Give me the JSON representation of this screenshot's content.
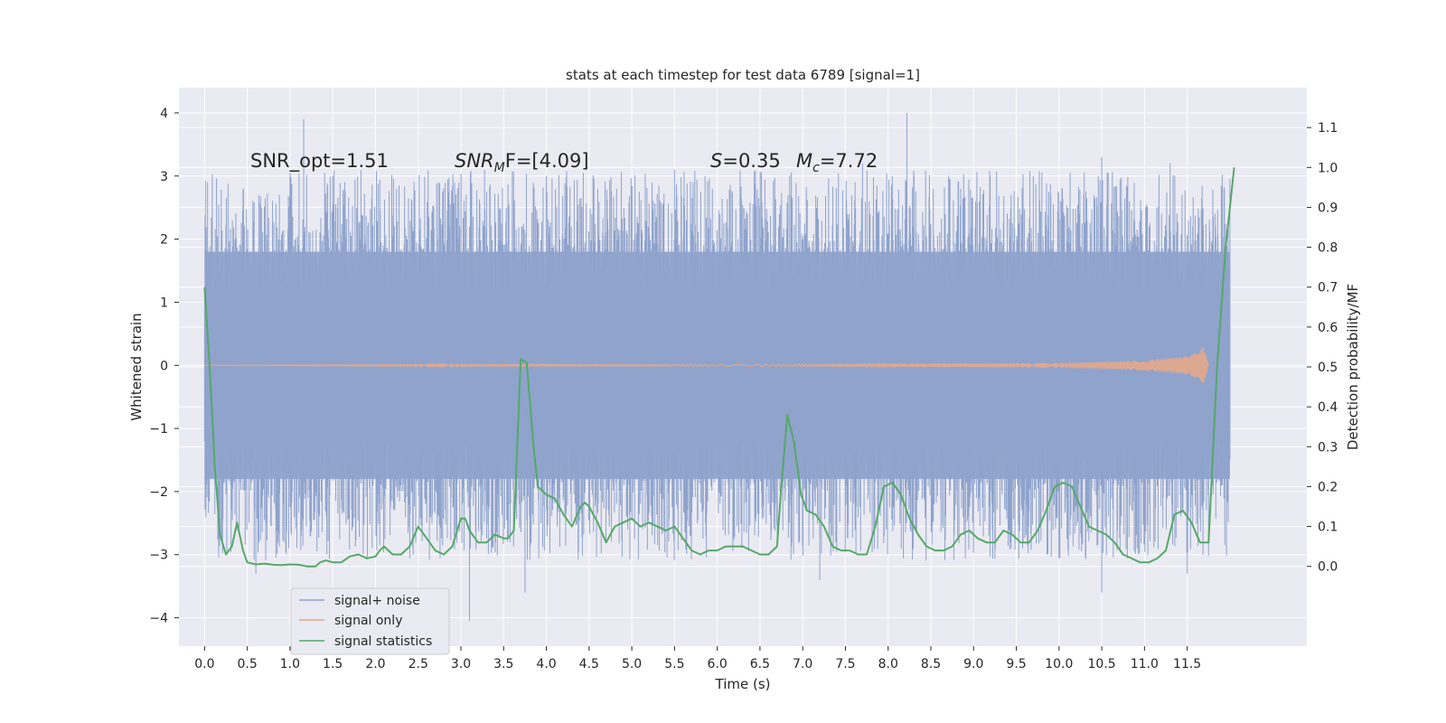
{
  "chart_data": {
    "type": "line",
    "title": "stats at each timestep for test data 6789 [signal=1]",
    "xlabel": "Time (s)",
    "ylabel": "Whitened strain",
    "y2label": "Detection probability/MF",
    "xlim": [
      -0.3,
      12.9
    ],
    "ylim": [
      -4.45,
      4.4
    ],
    "y2lim": [
      -0.2,
      1.2
    ],
    "x_ticks": [
      "0.0",
      "0.5",
      "1.0",
      "1.5",
      "2.0",
      "2.5",
      "3.0",
      "3.5",
      "4.0",
      "4.5",
      "5.0",
      "5.5",
      "6.0",
      "6.5",
      "7.0",
      "7.5",
      "8.0",
      "8.5",
      "9.0",
      "9.5",
      "10.0",
      "10.5",
      "11.0",
      "11.5"
    ],
    "y_ticks": [
      "4",
      "3",
      "2",
      "1",
      "0",
      "−1",
      "−2",
      "−3",
      "−4"
    ],
    "y2_ticks": [
      "1.1",
      "1.0",
      "0.9",
      "0.8",
      "0.7",
      "0.6",
      "0.5",
      "0.4",
      "0.3",
      "0.2",
      "0.1",
      "0.0"
    ],
    "grid": true,
    "legend_position": "lower-left",
    "annotations": {
      "snr_opt": "SNR_opt=1.51",
      "snr_mf_label": "SNR",
      "snr_mf_sub": "M",
      "snr_mf_rest": "F=[4.09]",
      "s_label": "S",
      "s_value": "=0.35",
      "mc_label": "M",
      "mc_sub": "c",
      "mc_value": "=7.72"
    },
    "series": [
      {
        "name": "signal+ noise",
        "color": "#8fa3cc",
        "style": "dense noise band",
        "t_range": [
          0.0,
          12.0
        ],
        "core_band": [
          -1.8,
          1.8
        ],
        "extremes": [
          [
            1.16,
            3.9
          ],
          [
            8.22,
            4.0
          ],
          [
            3.1,
            -4.05
          ],
          [
            0.6,
            -3.3
          ],
          [
            3.75,
            -3.6
          ],
          [
            7.2,
            -3.4
          ],
          [
            10.5,
            -3.6
          ],
          [
            11.5,
            -3.3
          ],
          [
            1.5,
            3.0
          ],
          [
            4.0,
            3.0
          ],
          [
            5.5,
            3.1
          ],
          [
            7.7,
            3.2
          ],
          [
            10.5,
            3.3
          ],
          [
            11.3,
            3.2
          ]
        ]
      },
      {
        "name": "signal only",
        "color": "#e6a88a",
        "style": "chirp",
        "t_range": [
          0.0,
          11.75
        ],
        "envelope": [
          [
            0.0,
            0.005
          ],
          [
            4.0,
            0.01
          ],
          [
            8.0,
            0.02
          ],
          [
            10.0,
            0.04
          ],
          [
            11.0,
            0.08
          ],
          [
            11.5,
            0.15
          ],
          [
            11.65,
            0.25
          ],
          [
            11.7,
            0.3
          ],
          [
            11.75,
            0.0
          ]
        ]
      },
      {
        "name": "signal statistics",
        "color": "#55a868",
        "style": "line",
        "points": [
          [
            0.0,
            0.7
          ],
          [
            0.06,
            0.5
          ],
          [
            0.12,
            0.25
          ],
          [
            0.18,
            0.08
          ],
          [
            0.25,
            0.03
          ],
          [
            0.32,
            0.05
          ],
          [
            0.38,
            0.11
          ],
          [
            0.45,
            0.04
          ],
          [
            0.5,
            0.01
          ],
          [
            0.6,
            0.005
          ],
          [
            0.7,
            0.007
          ],
          [
            0.8,
            0.004
          ],
          [
            0.9,
            0.003
          ],
          [
            1.0,
            0.005
          ],
          [
            1.1,
            0.004
          ],
          [
            1.2,
            0.0
          ],
          [
            1.3,
            0.0
          ],
          [
            1.35,
            0.01
          ],
          [
            1.42,
            0.015
          ],
          [
            1.5,
            0.01
          ],
          [
            1.6,
            0.01
          ],
          [
            1.7,
            0.025
          ],
          [
            1.8,
            0.03
          ],
          [
            1.9,
            0.02
          ],
          [
            2.0,
            0.025
          ],
          [
            2.05,
            0.04
          ],
          [
            2.1,
            0.05
          ],
          [
            2.2,
            0.03
          ],
          [
            2.3,
            0.03
          ],
          [
            2.4,
            0.05
          ],
          [
            2.5,
            0.1
          ],
          [
            2.6,
            0.07
          ],
          [
            2.7,
            0.04
          ],
          [
            2.8,
            0.03
          ],
          [
            2.9,
            0.05
          ],
          [
            3.0,
            0.12
          ],
          [
            3.05,
            0.12
          ],
          [
            3.1,
            0.09
          ],
          [
            3.2,
            0.06
          ],
          [
            3.3,
            0.06
          ],
          [
            3.4,
            0.08
          ],
          [
            3.5,
            0.07
          ],
          [
            3.55,
            0.07
          ],
          [
            3.62,
            0.09
          ],
          [
            3.7,
            0.52
          ],
          [
            3.77,
            0.51
          ],
          [
            3.85,
            0.3
          ],
          [
            3.9,
            0.2
          ],
          [
            4.0,
            0.18
          ],
          [
            4.1,
            0.17
          ],
          [
            4.2,
            0.13
          ],
          [
            4.3,
            0.1
          ],
          [
            4.4,
            0.15
          ],
          [
            4.45,
            0.16
          ],
          [
            4.5,
            0.15
          ],
          [
            4.6,
            0.11
          ],
          [
            4.7,
            0.06
          ],
          [
            4.8,
            0.1
          ],
          [
            4.9,
            0.11
          ],
          [
            5.0,
            0.12
          ],
          [
            5.1,
            0.1
          ],
          [
            5.2,
            0.11
          ],
          [
            5.3,
            0.1
          ],
          [
            5.4,
            0.09
          ],
          [
            5.5,
            0.1
          ],
          [
            5.6,
            0.07
          ],
          [
            5.7,
            0.04
          ],
          [
            5.8,
            0.03
          ],
          [
            5.9,
            0.04
          ],
          [
            6.0,
            0.04
          ],
          [
            6.1,
            0.05
          ],
          [
            6.2,
            0.05
          ],
          [
            6.3,
            0.05
          ],
          [
            6.4,
            0.04
          ],
          [
            6.5,
            0.03
          ],
          [
            6.6,
            0.03
          ],
          [
            6.7,
            0.05
          ],
          [
            6.75,
            0.2
          ],
          [
            6.82,
            0.38
          ],
          [
            6.9,
            0.31
          ],
          [
            6.98,
            0.18
          ],
          [
            7.05,
            0.14
          ],
          [
            7.15,
            0.13
          ],
          [
            7.25,
            0.1
          ],
          [
            7.35,
            0.05
          ],
          [
            7.45,
            0.04
          ],
          [
            7.55,
            0.04
          ],
          [
            7.65,
            0.03
          ],
          [
            7.75,
            0.03
          ],
          [
            7.85,
            0.1
          ],
          [
            7.95,
            0.2
          ],
          [
            8.05,
            0.21
          ],
          [
            8.15,
            0.18
          ],
          [
            8.25,
            0.12
          ],
          [
            8.35,
            0.08
          ],
          [
            8.45,
            0.05
          ],
          [
            8.55,
            0.04
          ],
          [
            8.65,
            0.04
          ],
          [
            8.75,
            0.05
          ],
          [
            8.85,
            0.08
          ],
          [
            8.95,
            0.09
          ],
          [
            9.05,
            0.07
          ],
          [
            9.15,
            0.06
          ],
          [
            9.25,
            0.06
          ],
          [
            9.35,
            0.09
          ],
          [
            9.45,
            0.08
          ],
          [
            9.55,
            0.06
          ],
          [
            9.65,
            0.06
          ],
          [
            9.75,
            0.09
          ],
          [
            9.85,
            0.14
          ],
          [
            9.95,
            0.2
          ],
          [
            10.05,
            0.21
          ],
          [
            10.15,
            0.2
          ],
          [
            10.25,
            0.15
          ],
          [
            10.35,
            0.1
          ],
          [
            10.45,
            0.09
          ],
          [
            10.55,
            0.08
          ],
          [
            10.65,
            0.06
          ],
          [
            10.75,
            0.03
          ],
          [
            10.85,
            0.02
          ],
          [
            10.95,
            0.01
          ],
          [
            11.05,
            0.01
          ],
          [
            11.15,
            0.02
          ],
          [
            11.25,
            0.04
          ],
          [
            11.35,
            0.13
          ],
          [
            11.45,
            0.14
          ],
          [
            11.55,
            0.11
          ],
          [
            11.65,
            0.06
          ],
          [
            11.75,
            0.06
          ],
          [
            11.85,
            0.5
          ],
          [
            11.95,
            0.8
          ],
          [
            12.05,
            1.0
          ]
        ]
      }
    ]
  },
  "legend": {
    "items": [
      {
        "label": "signal+ noise",
        "color": "#8fa3cc"
      },
      {
        "label": "signal only",
        "color": "#e6a88a"
      },
      {
        "label": "signal statistics",
        "color": "#55a868"
      }
    ]
  },
  "colors": {
    "plot_bg": "#eaeaf2",
    "grid": "#ffffff",
    "text": "#262626"
  }
}
